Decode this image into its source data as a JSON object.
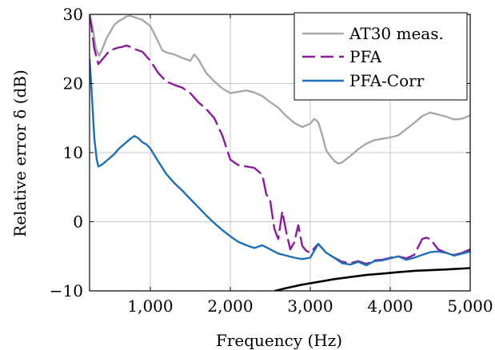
{
  "chart_data": {
    "type": "line",
    "xlabel": "Frequency (Hz)",
    "ylabel": "Relative error δ (dB)",
    "xlim": [
      240,
      5000
    ],
    "ylim": [
      -10,
      30
    ],
    "x_ticks": [
      1000,
      2000,
      3000,
      4000,
      5000
    ],
    "x_tick_labels": [
      "1,000",
      "2,000",
      "3,000",
      "4,000",
      "5,000"
    ],
    "y_ticks": [
      -10,
      0,
      10,
      20,
      30
    ],
    "y_tick_labels": [
      "−10",
      "0",
      "10",
      "20",
      "30"
    ],
    "grid": true,
    "legend_position": "top-right",
    "series": [
      {
        "name": "AT30 meas.",
        "color": "#a8a8a8",
        "dash": "solid",
        "points": [
          [
            240,
            30
          ],
          [
            280,
            28
          ],
          [
            320,
            25
          ],
          [
            360,
            24
          ],
          [
            400,
            25
          ],
          [
            450,
            26.5
          ],
          [
            500,
            27.5
          ],
          [
            550,
            28.5
          ],
          [
            600,
            29
          ],
          [
            650,
            29.3
          ],
          [
            700,
            29.7
          ],
          [
            750,
            29.8
          ],
          [
            800,
            29.6
          ],
          [
            900,
            29.2
          ],
          [
            1000,
            28.3
          ],
          [
            1050,
            27.2
          ],
          [
            1100,
            26
          ],
          [
            1150,
            24.8
          ],
          [
            1200,
            24.5
          ],
          [
            1300,
            24.2
          ],
          [
            1400,
            23.7
          ],
          [
            1500,
            23.3
          ],
          [
            1550,
            24.2
          ],
          [
            1600,
            23.5
          ],
          [
            1700,
            21.5
          ],
          [
            1800,
            20.3
          ],
          [
            1900,
            19.3
          ],
          [
            2000,
            18.6
          ],
          [
            2100,
            18.8
          ],
          [
            2200,
            19
          ],
          [
            2300,
            18.7
          ],
          [
            2400,
            18.2
          ],
          [
            2500,
            17.3
          ],
          [
            2600,
            16.5
          ],
          [
            2700,
            15.3
          ],
          [
            2800,
            14.3
          ],
          [
            2900,
            13.7
          ],
          [
            3000,
            14.2
          ],
          [
            3050,
            14.9
          ],
          [
            3100,
            14.4
          ],
          [
            3150,
            12.5
          ],
          [
            3200,
            10.3
          ],
          [
            3250,
            9.5
          ],
          [
            3300,
            8.8
          ],
          [
            3350,
            8.4
          ],
          [
            3400,
            8.6
          ],
          [
            3500,
            9.5
          ],
          [
            3600,
            10.5
          ],
          [
            3700,
            11.3
          ],
          [
            3800,
            11.8
          ],
          [
            3900,
            12
          ],
          [
            4000,
            12.2
          ],
          [
            4100,
            12.5
          ],
          [
            4200,
            13.4
          ],
          [
            4300,
            14.3
          ],
          [
            4400,
            15.3
          ],
          [
            4500,
            15.8
          ],
          [
            4600,
            15.5
          ],
          [
            4700,
            15.2
          ],
          [
            4800,
            14.8
          ],
          [
            4900,
            14.9
          ],
          [
            5000,
            15.4
          ]
        ]
      },
      {
        "name": "PFA",
        "color": "#8b1a9c",
        "dash": "dashed",
        "points": [
          [
            240,
            30
          ],
          [
            260,
            28.5
          ],
          [
            300,
            25
          ],
          [
            350,
            22.8
          ],
          [
            400,
            23.5
          ],
          [
            450,
            24.2
          ],
          [
            500,
            24.8
          ],
          [
            550,
            25
          ],
          [
            600,
            25.2
          ],
          [
            650,
            25.3
          ],
          [
            700,
            25.5
          ],
          [
            750,
            25.3
          ],
          [
            800,
            25
          ],
          [
            900,
            24.6
          ],
          [
            1000,
            23.3
          ],
          [
            1100,
            21.5
          ],
          [
            1200,
            20.3
          ],
          [
            1300,
            19.8
          ],
          [
            1400,
            19.4
          ],
          [
            1500,
            18.6
          ],
          [
            1600,
            17.3
          ],
          [
            1700,
            16.3
          ],
          [
            1800,
            15
          ],
          [
            1900,
            12.5
          ],
          [
            2000,
            9
          ],
          [
            2100,
            8.2
          ],
          [
            2200,
            8
          ],
          [
            2300,
            7.8
          ],
          [
            2400,
            6.8
          ],
          [
            2450,
            4
          ],
          [
            2500,
            3
          ],
          [
            2550,
            -1
          ],
          [
            2600,
            -2.5
          ],
          [
            2650,
            1.5
          ],
          [
            2700,
            -1.5
          ],
          [
            2750,
            -4
          ],
          [
            2800,
            -3
          ],
          [
            2850,
            -0.5
          ],
          [
            2900,
            -3.5
          ],
          [
            2950,
            -4.2
          ],
          [
            3000,
            -4.5
          ],
          [
            3100,
            -3.2
          ],
          [
            3200,
            -4.5
          ],
          [
            3300,
            -5.2
          ],
          [
            3400,
            -5.8
          ],
          [
            3500,
            -6
          ],
          [
            3600,
            -5.7
          ],
          [
            3700,
            -6.1
          ],
          [
            3800,
            -5.6
          ],
          [
            3900,
            -5.5
          ],
          [
            4000,
            -5.2
          ],
          [
            4100,
            -5
          ],
          [
            4200,
            -5.3
          ],
          [
            4300,
            -4.8
          ],
          [
            4400,
            -2.5
          ],
          [
            4450,
            -2.3
          ],
          [
            4500,
            -2.5
          ],
          [
            4600,
            -4
          ],
          [
            4700,
            -4.5
          ],
          [
            4800,
            -4.8
          ],
          [
            4900,
            -4.5
          ],
          [
            5000,
            -4
          ]
        ]
      },
      {
        "name": "PFA-Corr",
        "color": "#1f6fb5",
        "dash": "solid",
        "points": [
          [
            240,
            23.5
          ],
          [
            260,
            20
          ],
          [
            280,
            16
          ],
          [
            300,
            12
          ],
          [
            330,
            9
          ],
          [
            350,
            8
          ],
          [
            400,
            8.3
          ],
          [
            450,
            8.8
          ],
          [
            500,
            9.3
          ],
          [
            550,
            9.8
          ],
          [
            600,
            10.5
          ],
          [
            650,
            11
          ],
          [
            700,
            11.5
          ],
          [
            750,
            12
          ],
          [
            800,
            12.4
          ],
          [
            850,
            12.1
          ],
          [
            900,
            11.5
          ],
          [
            950,
            11.2
          ],
          [
            1000,
            10.6
          ],
          [
            1100,
            8.7
          ],
          [
            1200,
            6.9
          ],
          [
            1300,
            5.6
          ],
          [
            1400,
            4.5
          ],
          [
            1500,
            3.3
          ],
          [
            1600,
            2.1
          ],
          [
            1700,
            0.9
          ],
          [
            1800,
            -0.2
          ],
          [
            1900,
            -1.2
          ],
          [
            2000,
            -2.1
          ],
          [
            2100,
            -2.9
          ],
          [
            2200,
            -3.4
          ],
          [
            2300,
            -3.8
          ],
          [
            2400,
            -3.4
          ],
          [
            2500,
            -4
          ],
          [
            2600,
            -4.6
          ],
          [
            2700,
            -4.9
          ],
          [
            2800,
            -5.2
          ],
          [
            2900,
            -5.4
          ],
          [
            3000,
            -5.2
          ],
          [
            3100,
            -3.2
          ],
          [
            3200,
            -4.5
          ],
          [
            3300,
            -5.2
          ],
          [
            3400,
            -6
          ],
          [
            3500,
            -6.2
          ],
          [
            3600,
            -5.8
          ],
          [
            3700,
            -6.3
          ],
          [
            3800,
            -5.7
          ],
          [
            3900,
            -5.6
          ],
          [
            4000,
            -5.3
          ],
          [
            4100,
            -5
          ],
          [
            4200,
            -5.5
          ],
          [
            4300,
            -5.2
          ],
          [
            4400,
            -4.8
          ],
          [
            4500,
            -4.4
          ],
          [
            4600,
            -4.3
          ],
          [
            4700,
            -4.5
          ],
          [
            4800,
            -4.9
          ],
          [
            4900,
            -4.6
          ],
          [
            5000,
            -4.3
          ]
        ]
      },
      {
        "name": "",
        "color": "#000000",
        "dash": "solid",
        "points": [
          [
            2560,
            -10
          ],
          [
            2700,
            -9.6
          ],
          [
            2900,
            -9.1
          ],
          [
            3100,
            -8.7
          ],
          [
            3300,
            -8.3
          ],
          [
            3500,
            -8
          ],
          [
            3700,
            -7.7
          ],
          [
            3900,
            -7.5
          ],
          [
            4100,
            -7.3
          ],
          [
            4300,
            -7.1
          ],
          [
            4500,
            -7
          ],
          [
            4700,
            -6.9
          ],
          [
            5000,
            -6.7
          ]
        ]
      }
    ]
  }
}
